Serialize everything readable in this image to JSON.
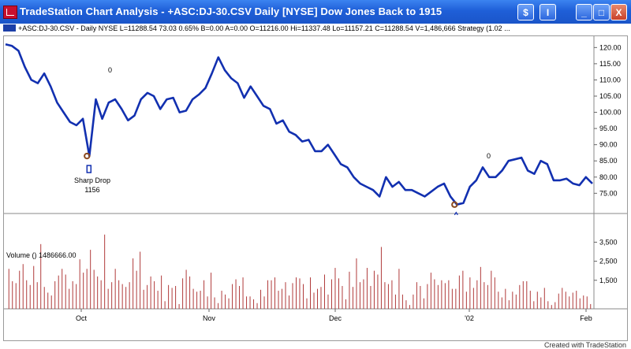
{
  "window": {
    "title": "TradeStation Chart Analysis - +ASC:DJ-30.CSV  Daily  [NYSE] Dow Jones Back to 1915",
    "buttons": [
      "$",
      "I",
      "_",
      "□",
      "X"
    ]
  },
  "status_line": "+ASC:DJ-30.CSV - Daily  NYSE  L=11288.54  73.03  0.65%  B=0.00  A=0.00  O=11216.00  Hi=11337.48  Lo=11157.21  C=11288.54  V=1,486,666  Strategy (1.02 ...",
  "volume_label": "Volume ()  1486666.00",
  "annotations": {
    "sharp_drop_label": "Sharp Drop",
    "sharp_drop_value": "1156",
    "zero_label": "0"
  },
  "footer": "Created with TradeStation",
  "colors": {
    "price_line": "#1230b0",
    "volume_bar": "#b03a3a",
    "grid": "#9a9a9a",
    "marker": "#8b4a20"
  },
  "chart_data": {
    "type": "line",
    "price": {
      "y_ticks": [
        "120.00",
        "115.00",
        "110.00",
        "105.00",
        "100.00",
        "95.00",
        "90.00",
        "85.00",
        "80.00",
        "75.00"
      ],
      "ylim": [
        69,
        123
      ],
      "series": [
        {
          "values": [
            121,
            120.5,
            119,
            114,
            110,
            109,
            112,
            108,
            103,
            100,
            97,
            96,
            98,
            86.5,
            104,
            98,
            103,
            104,
            101,
            97.5,
            99,
            104,
            106,
            105,
            101,
            104,
            104.5,
            100,
            100.5,
            104,
            105.5,
            107.5,
            112,
            117,
            113,
            110.5,
            109,
            104.5,
            108,
            105,
            102,
            101,
            96.5,
            97.5,
            94,
            93,
            91,
            91.5,
            88,
            88,
            90,
            87,
            84,
            83,
            80,
            78,
            77,
            76,
            74,
            80,
            77,
            78.5,
            76,
            76,
            75,
            74,
            75.5,
            77,
            78,
            74,
            71.5,
            72,
            77,
            79,
            83,
            80,
            80,
            82,
            85,
            85.5,
            86,
            82,
            81,
            85,
            84,
            79,
            79,
            79.5,
            78,
            77.5,
            80,
            78
          ]
        }
      ]
    },
    "volume": {
      "y_ticks": [
        "3,500",
        "2,500",
        "1,500"
      ],
      "ylim": [
        0,
        4800
      ],
      "values": [
        2100,
        1450,
        1350,
        2000,
        2350,
        1500,
        1250,
        2250,
        1400,
        3400,
        1150,
        850,
        700,
        1450,
        1750,
        2100,
        1800,
        1050,
        1450,
        1300,
        2600,
        1900,
        2100,
        3100,
        2050,
        1700,
        1500,
        3900,
        1050,
        1400,
        2100,
        1500,
        1300,
        1150,
        1400,
        2650,
        2000,
        3000,
        1000,
        1250,
        1700,
        1450,
        950,
        1750,
        400,
        1250,
        1100,
        1200,
        250,
        1600,
        2050,
        1700,
        1050,
        900,
        950,
        1500,
        650,
        1900,
        600,
        300,
        950,
        750,
        550,
        1300,
        1550,
        1200,
        1650,
        650,
        650,
        500,
        300,
        1000,
        650,
        1500,
        1500,
        1650,
        950,
        1050,
        1400,
        700,
        1350,
        1650,
        1600,
        1300,
        550,
        1650,
        850,
        1050,
        1150,
        1800,
        750,
        1550,
        2150,
        1600,
        1200,
        500,
        1950,
        1150,
        2650,
        1400,
        1550,
        2150,
        1200,
        2000,
        1800,
        3250,
        1400,
        1300,
        1500,
        750,
        2100,
        750,
        450,
        200,
        750,
        1400,
        1200,
        550,
        1300,
        1900,
        1550,
        1250,
        1500,
        1350,
        1500,
        1050,
        1050,
        1750,
        2000,
        900,
        1650,
        1100,
        1500,
        2200,
        1400,
        1250,
        2000,
        1650,
        900,
        600,
        1050,
        450,
        900,
        750,
        1250,
        1450,
        1450,
        950,
        400,
        900,
        600,
        1100,
        400,
        200,
        350,
        800,
        1100,
        900,
        650,
        850,
        950,
        550,
        700,
        650,
        250
      ]
    },
    "x_labels": [
      "Oct",
      "Nov",
      "Dec",
      "'02",
      "Feb"
    ]
  }
}
